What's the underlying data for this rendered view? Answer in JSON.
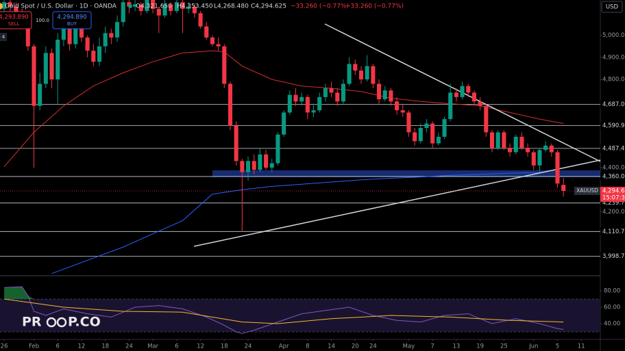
{
  "chart_data": {
    "type": "candlestick",
    "header": {
      "symbol": "Gold Spot / U.S. Dollar · 1D · OANDA",
      "open": "O4,321.650",
      "high": "H4,353.450",
      "low": "L4,268.480",
      "close": "C4,294.625",
      "change": "−33.260 (−0.77%)",
      "sell_price": "4,293.890",
      "sell": "SELL",
      "spread": "100.0",
      "buy_price": "4,294.890",
      "buy": "BUY",
      "counter": "4",
      "currency": "USD"
    },
    "watermark": [
      "PR",
      "P.CO"
    ],
    "xlim": [
      -0.7,
      100.2
    ],
    "xticks": [
      {
        "value": 0,
        "label": "26"
      },
      {
        "value": 5,
        "label": "Feb"
      },
      {
        "value": 9,
        "label": "6"
      },
      {
        "value": 13,
        "label": "12"
      },
      {
        "value": 17,
        "label": "18"
      },
      {
        "value": 21,
        "label": "24"
      },
      {
        "value": 25,
        "label": "Mar"
      },
      {
        "value": 29,
        "label": "6"
      },
      {
        "value": 33,
        "label": "12"
      },
      {
        "value": 37,
        "label": "18"
      },
      {
        "value": 41,
        "label": "24"
      },
      {
        "value": 47,
        "label": "Apr"
      },
      {
        "value": 51,
        "label": "8"
      },
      {
        "value": 55,
        "label": "14"
      },
      {
        "value": 59,
        "label": "20"
      },
      {
        "value": 62,
        "label": "24"
      },
      {
        "value": 68,
        "label": "May"
      },
      {
        "value": 72,
        "label": "7"
      },
      {
        "value": 76,
        "label": "13"
      },
      {
        "value": 80,
        "label": "19"
      },
      {
        "value": 84,
        "label": "25"
      },
      {
        "value": 89,
        "label": "Jun"
      },
      {
        "value": 93,
        "label": "5"
      },
      {
        "value": 97,
        "label": "11"
      }
    ],
    "ylim": [
      3910,
      5160
    ],
    "yticks": [
      {
        "value": 5000,
        "label": "5,000.0"
      },
      {
        "value": 4900,
        "label": "4,900.0"
      },
      {
        "value": 4800,
        "label": "4,800.0"
      },
      {
        "value": 4400,
        "label": "4,400.0"
      },
      {
        "value": 4200,
        "label": "4,200.0"
      }
    ],
    "levels": [
      {
        "value": 4687.0,
        "label": "4,687.0"
      },
      {
        "value": 4590.9,
        "label": "4,590.9"
      },
      {
        "value": 4487.4,
        "label": "4,487.4"
      },
      {
        "value": 4360.0,
        "label": "4,360.0"
      },
      {
        "value": 4239.7,
        "label": "4,239.7"
      },
      {
        "value": 4110.7,
        "label": "4,110.7"
      },
      {
        "value": 3998.7,
        "label": "3,998.7"
      }
    ],
    "last_price": {
      "value": 4294.6,
      "label": "4,294.6",
      "symbol": "XAUUSD",
      "countdown": "15:07:3"
    },
    "up_color": "#089981",
    "down_color": "#f23645",
    "ohlc": [
      [
        5120,
        5180,
        5100,
        5150
      ],
      [
        5150,
        5170,
        5110,
        5130
      ],
      [
        5130,
        5150,
        5080,
        5100
      ],
      [
        5100,
        5120,
        5060,
        5080
      ],
      [
        5080,
        5090,
        4930,
        4950
      ],
      [
        4950,
        4960,
        4400,
        4680
      ],
      [
        4680,
        4830,
        4660,
        4780
      ],
      [
        4780,
        4950,
        4760,
        4920
      ],
      [
        4920,
        4940,
        4760,
        4800
      ],
      [
        4800,
        5010,
        4690,
        4980
      ],
      [
        4980,
        5100,
        4950,
        5060
      ],
      [
        5060,
        5080,
        4930,
        4960
      ],
      [
        4960,
        5060,
        4940,
        5040
      ],
      [
        5040,
        5070,
        4970,
        4990
      ],
      [
        4990,
        5000,
        4900,
        4930
      ],
      [
        4930,
        4960,
        4860,
        4880
      ],
      [
        4880,
        4990,
        4860,
        4950
      ],
      [
        4950,
        5040,
        4920,
        5010
      ],
      [
        5010,
        5030,
        4960,
        4990
      ],
      [
        4990,
        5090,
        4970,
        5060
      ],
      [
        5060,
        5170,
        5040,
        5150
      ],
      [
        5150,
        5170,
        5100,
        5130
      ],
      [
        5130,
        5160,
        5110,
        5140
      ],
      [
        5140,
        5150,
        5090,
        5110
      ],
      [
        5110,
        5170,
        5100,
        5160
      ],
      [
        5160,
        5175,
        5100,
        5120
      ],
      [
        5120,
        5130,
        5010,
        5090
      ],
      [
        5090,
        5160,
        5080,
        5140
      ],
      [
        5140,
        5150,
        5090,
        5110
      ],
      [
        5110,
        5165,
        5100,
        5150
      ],
      [
        5150,
        5160,
        5010,
        5120
      ],
      [
        5120,
        5150,
        5100,
        5130
      ],
      [
        5130,
        5140,
        5080,
        5100
      ],
      [
        5100,
        5110,
        5030,
        5040
      ],
      [
        5040,
        5060,
        4980,
        4990
      ],
      [
        4990,
        5000,
        4950,
        4960
      ],
      [
        4960,
        4990,
        4930,
        4950
      ],
      [
        4950,
        4960,
        4760,
        4780
      ],
      [
        4780,
        4790,
        4570,
        4590
      ],
      [
        4590,
        4610,
        4410,
        4430
      ],
      [
        4430,
        4440,
        4110,
        4380
      ],
      [
        4380,
        4450,
        4340,
        4430
      ],
      [
        4430,
        4460,
        4370,
        4390
      ],
      [
        4390,
        4490,
        4380,
        4460
      ],
      [
        4460,
        4480,
        4390,
        4400
      ],
      [
        4400,
        4440,
        4380,
        4420
      ],
      [
        4420,
        4560,
        4410,
        4550
      ],
      [
        4550,
        4660,
        4540,
        4650
      ],
      [
        4650,
        4750,
        4640,
        4730
      ],
      [
        4730,
        4760,
        4680,
        4700
      ],
      [
        4700,
        4740,
        4680,
        4720
      ],
      [
        4720,
        4730,
        4620,
        4650
      ],
      [
        4650,
        4690,
        4630,
        4660
      ],
      [
        4660,
        4740,
        4650,
        4720
      ],
      [
        4720,
        4780,
        4700,
        4760
      ],
      [
        4760,
        4790,
        4720,
        4740
      ],
      [
        4740,
        4760,
        4680,
        4700
      ],
      [
        4700,
        4800,
        4690,
        4780
      ],
      [
        4780,
        4900,
        4770,
        4870
      ],
      [
        4870,
        4890,
        4820,
        4840
      ],
      [
        4840,
        4860,
        4780,
        4800
      ],
      [
        4800,
        4910,
        4790,
        4860
      ],
      [
        4860,
        4870,
        4760,
        4780
      ],
      [
        4780,
        4800,
        4690,
        4710
      ],
      [
        4710,
        4770,
        4700,
        4750
      ],
      [
        4750,
        4760,
        4680,
        4700
      ],
      [
        4700,
        4720,
        4640,
        4660
      ],
      [
        4660,
        4690,
        4630,
        4650
      ],
      [
        4650,
        4660,
        4540,
        4560
      ],
      [
        4560,
        4580,
        4500,
        4520
      ],
      [
        4520,
        4600,
        4510,
        4580
      ],
      [
        4580,
        4620,
        4560,
        4600
      ],
      [
        4600,
        4610,
        4490,
        4510
      ],
      [
        4510,
        4560,
        4500,
        4540
      ],
      [
        4540,
        4630,
        4530,
        4620
      ],
      [
        4620,
        4780,
        4610,
        4740
      ],
      [
        4740,
        4760,
        4700,
        4720
      ],
      [
        4720,
        4790,
        4710,
        4770
      ],
      [
        4770,
        4780,
        4720,
        4740
      ],
      [
        4740,
        4750,
        4690,
        4700
      ],
      [
        4700,
        4720,
        4660,
        4680
      ],
      [
        4680,
        4690,
        4540,
        4560
      ],
      [
        4560,
        4570,
        4470,
        4490
      ],
      [
        4490,
        4570,
        4480,
        4560
      ],
      [
        4560,
        4570,
        4480,
        4490
      ],
      [
        4490,
        4510,
        4450,
        4470
      ],
      [
        4470,
        4550,
        4460,
        4540
      ],
      [
        4540,
        4560,
        4480,
        4490
      ],
      [
        4490,
        4510,
        4450,
        4470
      ],
      [
        4470,
        4480,
        4390,
        4410
      ],
      [
        4410,
        4490,
        4380,
        4480
      ],
      [
        4480,
        4520,
        4470,
        4500
      ],
      [
        4500,
        4510,
        4450,
        4470
      ],
      [
        4470,
        4480,
        4310,
        4327.885
      ],
      [
        4321.65,
        4353.45,
        4268.48,
        4294.625
      ]
    ],
    "series": [
      {
        "color": "#d32f2f",
        "x": [
          0,
          5,
          10,
          15,
          20,
          25,
          30,
          35,
          37,
          40,
          45,
          50,
          55,
          60,
          65,
          70,
          75,
          80,
          85,
          90,
          94
        ],
        "values": [
          4404,
          4560,
          4680,
          4770,
          4830,
          4880,
          4920,
          4930,
          4925,
          4860,
          4800,
          4770,
          4760,
          4745,
          4715,
          4700,
          4690,
          4680,
          4650,
          4620,
          4600
        ]
      },
      {
        "color": "#2962ff",
        "x": [
          8,
          15,
          20,
          25,
          30,
          35,
          40,
          45,
          50,
          55,
          60,
          65,
          70,
          75,
          80,
          85,
          90
        ],
        "values": [
          3920,
          3990,
          4040,
          4100,
          4160,
          4280,
          4300,
          4315,
          4325,
          4335,
          4345,
          4352,
          4358,
          4365,
          4370,
          4375,
          4377
        ]
      }
    ],
    "oscillator": {
      "ylim": [
        21.7,
        96.7
      ],
      "yticks": [
        {
          "value": 80,
          "label": "80.00"
        },
        {
          "value": 60,
          "label": "60.00"
        },
        {
          "value": 40,
          "label": "40.00"
        }
      ],
      "band": [
        30,
        70
      ],
      "series": [
        {
          "color": "#7e57c2",
          "x": [
            0,
            3,
            4,
            5,
            7,
            10,
            14,
            18,
            22,
            26,
            30,
            34,
            37,
            39,
            40,
            42,
            46,
            50,
            54,
            58,
            62,
            66,
            70,
            74,
            78,
            82,
            86,
            90,
            93,
            94
          ],
          "values": [
            84,
            85,
            74,
            55,
            50,
            58,
            52,
            48,
            60,
            62,
            58,
            48,
            38,
            30,
            28,
            32,
            42,
            52,
            56,
            60,
            50,
            44,
            42,
            50,
            52,
            40,
            46,
            40,
            34,
            33
          ]
        },
        {
          "color": "#f5b92e",
          "x": [
            0,
            5,
            10,
            20,
            30,
            40,
            46,
            55,
            65,
            75,
            85,
            94
          ],
          "values": [
            70,
            65,
            60,
            55,
            54,
            42,
            40,
            46,
            50,
            48,
            44,
            42
          ]
        }
      ]
    }
  }
}
